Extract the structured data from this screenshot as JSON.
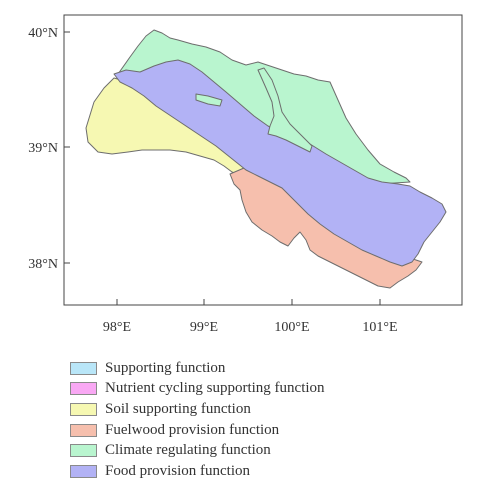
{
  "axes": {
    "y_ticks": [
      "40°N",
      "39°N",
      "38°N"
    ],
    "x_ticks": [
      "98°E",
      "99°E",
      "100°E",
      "101°E"
    ]
  },
  "legend": [
    {
      "label": "Supporting function",
      "color": "#b9e6f8"
    },
    {
      "label": "Nutrient cycling supporting function",
      "color": "#f9a8f4"
    },
    {
      "label": "Soil supporting function",
      "color": "#f6f8b2"
    },
    {
      "label": "Fuelwood provision function",
      "color": "#f6bfad"
    },
    {
      "label": "Climate regulating function",
      "color": "#b9f5cf"
    },
    {
      "label": "Food provision function",
      "color": "#b2b2f5"
    }
  ]
}
